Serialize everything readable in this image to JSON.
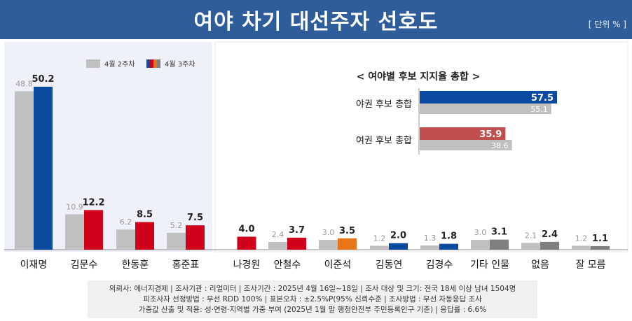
{
  "header": {
    "title": "여야 차기 대선주자 선호도",
    "unit": "[ 단위 % ]"
  },
  "colors": {
    "header_bg": "#2f5d99",
    "prev_week": "#c0c0c0",
    "blue": "#0a4aa0",
    "red": "#d0021b",
    "orange": "#e8751a",
    "gray": "#7f7f7f",
    "overlay_red": "#c0504d"
  },
  "chart_data": [
    {
      "type": "bar",
      "title": "",
      "ylim": [
        0,
        55
      ],
      "legend": [
        "4월 2주차",
        "4월 3주차"
      ],
      "legend_position": "top-left",
      "categories": [
        "이재명",
        "김문수",
        "한동훈",
        "홍준표",
        "나경원",
        "안철수",
        "이준석",
        "김동연",
        "김경수",
        "기타 인물",
        "없음",
        "잘 모름"
      ],
      "series": [
        {
          "name": "4월 2주차",
          "values": [
            48.8,
            10.9,
            6.2,
            5.2,
            null,
            2.4,
            3.0,
            1.2,
            1.3,
            3.0,
            2.1,
            1.2
          ]
        },
        {
          "name": "4월 3주차",
          "values": [
            50.2,
            12.2,
            8.5,
            7.5,
            4.0,
            3.7,
            3.5,
            2.0,
            1.8,
            3.1,
            2.4,
            1.1
          ],
          "colors": [
            "blue",
            "red",
            "red",
            "red",
            "red",
            "red",
            "orange",
            "blue",
            "blue",
            "gray",
            "gray",
            "gray"
          ]
        }
      ],
      "value_labels": {
        "prev": [
          "48.8",
          "10.9",
          "6.2",
          "5.2",
          "",
          "2.4",
          "3.0",
          "1.2",
          "1.3",
          "3.0",
          "2.1",
          "1.2"
        ],
        "curr": [
          "50.2",
          "12.2",
          "8.5",
          "7.5",
          "4.0",
          "3.7",
          "3.5",
          "2.0",
          "1.8",
          "3.1",
          "2.4",
          "1.1"
        ]
      }
    },
    {
      "type": "bar",
      "orientation": "horizontal",
      "title": "< 여야별 후보 지지율 총합 >",
      "categories": [
        "야권 후보 총합",
        "여권 후보 총합"
      ],
      "series": [
        {
          "name": "4월 3주차",
          "values": [
            57.5,
            35.9
          ],
          "colors": [
            "blue",
            "overlay_red"
          ]
        },
        {
          "name": "4월 2주차",
          "values": [
            55.1,
            38.6
          ]
        }
      ],
      "value_labels": {
        "curr": [
          "57.5",
          "35.9"
        ],
        "prev": [
          "55.1",
          "38.6"
        ]
      }
    }
  ],
  "footer": {
    "lines": [
      "의뢰사: 에너지경제 | 조사기관 : 리얼미터  |  조사기간 : 2025년 4월 16일~18일 | 조사 대상 및 크기: 전국 18세 이상 남녀 1504명",
      "피조사자 선정방법 : 무선 RDD 100% | 표본오차 : ±2.5%P(95% 신뢰수준 | 조사방법 : 무선 자동응답 조사",
      "가중값 산출 및 적용: 성·연령·지역별 가중 부여 (2025년 1월 말 행정안전부 주민등록인구 기준) | 응답률 : 6.6%"
    ]
  }
}
